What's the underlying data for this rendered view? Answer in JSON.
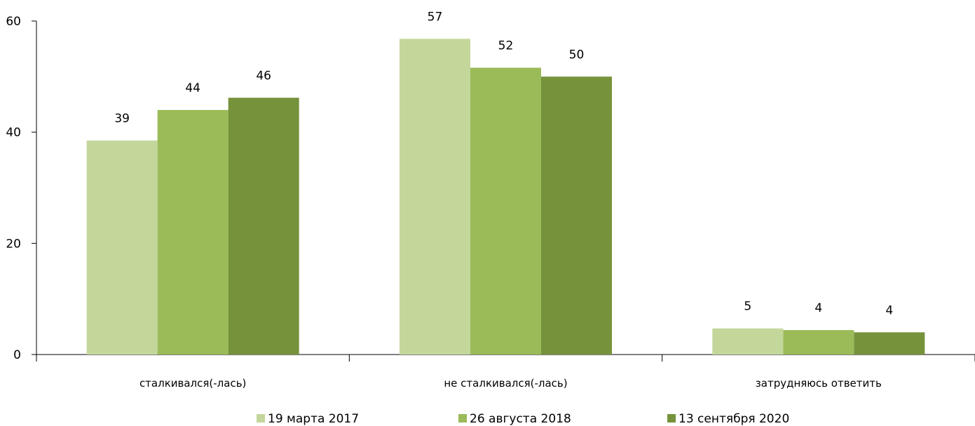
{
  "chart_data": {
    "type": "bar",
    "title": "",
    "xlabel": "",
    "ylabel": "",
    "ylim": [
      0,
      60
    ],
    "yticks": [
      0,
      20,
      40,
      60
    ],
    "grid": false,
    "legend_position": "bottom",
    "categories": [
      "сталкивался(-лась)",
      "не сталкивался(-лась)",
      "затрудняюсь ответить"
    ],
    "series": [
      {
        "name": "19 марта 2017",
        "color": "#c4d79b",
        "values": [
          38.5,
          56.8,
          4.7
        ],
        "labels": [
          "39",
          "57",
          "5"
        ]
      },
      {
        "name": "26 августа 2018",
        "color": "#9bbb59",
        "values": [
          44.0,
          51.6,
          4.4
        ],
        "labels": [
          "44",
          "52",
          "4"
        ]
      },
      {
        "name": "13 сентября 2020",
        "color": "#76933c",
        "values": [
          46.2,
          50.0,
          4.0
        ],
        "labels": [
          "46",
          "50",
          "4"
        ]
      }
    ]
  }
}
